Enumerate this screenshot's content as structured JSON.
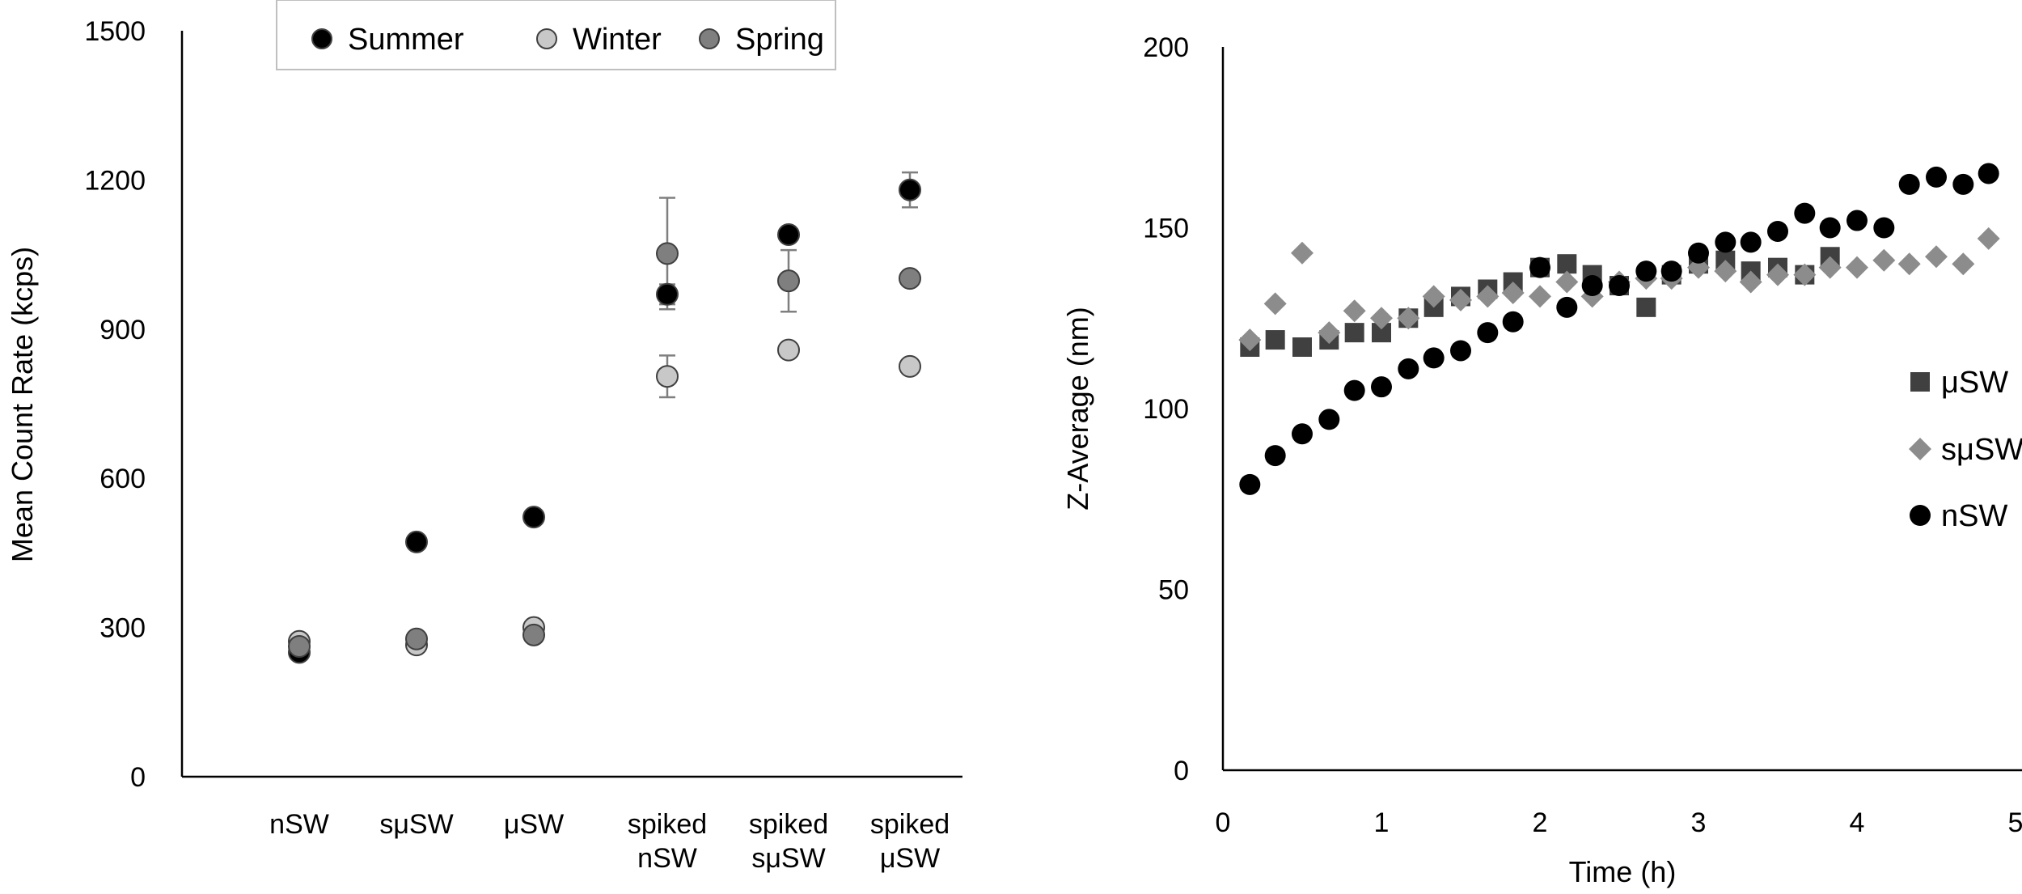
{
  "chart_data": [
    {
      "type": "scatter",
      "xlabel": "",
      "ylabel": "Mean Count Rate (kcps)",
      "ylim": [
        0,
        1500
      ],
      "yticks": [
        "0",
        "300",
        "600",
        "900",
        "1200",
        "1500"
      ],
      "categories": [
        [
          "nSW"
        ],
        [
          "sμSW"
        ],
        [
          "μSW"
        ],
        [
          "spiked",
          "nSW"
        ],
        [
          "spiked",
          "sμSW"
        ],
        [
          "spiked",
          "μSW"
        ]
      ],
      "legend_position": "top",
      "grid": false,
      "series": [
        {
          "name": "Summer",
          "color": "#000000",
          "values": [
            250,
            472,
            522,
            970,
            1090,
            1180
          ],
          "error": [
            0,
            0,
            0,
            20,
            0,
            35
          ]
        },
        {
          "name": "Winter",
          "color": "#c8c8c8",
          "values": [
            272,
            265,
            300,
            805,
            858,
            825
          ],
          "error": [
            0,
            0,
            0,
            42,
            0,
            0
          ]
        },
        {
          "name": "Spring",
          "color": "#7f7f7f",
          "values": [
            262,
            277,
            285,
            1052,
            997,
            1002
          ],
          "error": [
            0,
            0,
            0,
            112,
            62,
            0
          ]
        }
      ]
    },
    {
      "type": "scatter",
      "xlabel": "Time (h)",
      "ylabel": "Z-Average (nm)",
      "xlim": [
        0,
        5
      ],
      "ylim": [
        0,
        200
      ],
      "xticks": [
        "0",
        "1",
        "2",
        "3",
        "4",
        "5"
      ],
      "yticks": [
        "0",
        "50",
        "100",
        "150",
        "200"
      ],
      "legend_position": "right",
      "grid": false,
      "series": [
        {
          "name": "μSW",
          "marker": "square",
          "color": "#404040",
          "x": [
            0.17,
            0.33,
            0.5,
            0.67,
            0.83,
            1.0,
            1.17,
            1.33,
            1.5,
            1.67,
            1.83,
            2.0,
            2.17,
            2.33,
            2.5,
            2.67,
            2.83,
            3.0,
            3.17,
            3.33,
            3.5,
            3.67,
            3.83
          ],
          "y": [
            117,
            119,
            117,
            119,
            121,
            121,
            125,
            128,
            131,
            133,
            135,
            139,
            140,
            137,
            134,
            128,
            137,
            140,
            141,
            138,
            139,
            137,
            142
          ]
        },
        {
          "name": "sμSW",
          "marker": "diamond",
          "color": "#8c8c8c",
          "x": [
            0.17,
            0.33,
            0.5,
            0.67,
            0.83,
            1.0,
            1.17,
            1.33,
            1.5,
            1.67,
            1.83,
            2.0,
            2.17,
            2.33,
            2.5,
            2.67,
            2.83,
            3.0,
            3.17,
            3.33,
            3.5,
            3.67,
            3.83,
            4.0,
            4.17,
            4.33,
            4.5,
            4.67,
            4.83
          ],
          "y": [
            119,
            129,
            143,
            121,
            127,
            125,
            125,
            131,
            130,
            131,
            132,
            131,
            135,
            131,
            135,
            136,
            136,
            139,
            138,
            135,
            137,
            137,
            139,
            139,
            141,
            140,
            142,
            140,
            147
          ]
        },
        {
          "name": "nSW",
          "marker": "circle",
          "color": "#000000",
          "x": [
            0.17,
            0.33,
            0.5,
            0.67,
            0.83,
            1.0,
            1.17,
            1.33,
            1.5,
            1.67,
            1.83,
            2.0,
            2.17,
            2.33,
            2.5,
            2.67,
            2.83,
            3.0,
            3.17,
            3.33,
            3.5,
            3.67,
            3.83,
            4.0,
            4.17,
            4.33,
            4.5,
            4.67,
            4.83
          ],
          "y": [
            79,
            87,
            93,
            97,
            105,
            106,
            111,
            114,
            116,
            121,
            124,
            139,
            128,
            134,
            134,
            138,
            138,
            143,
            146,
            146,
            149,
            154,
            150,
            152,
            150,
            162,
            164,
            162,
            165
          ]
        }
      ]
    }
  ]
}
